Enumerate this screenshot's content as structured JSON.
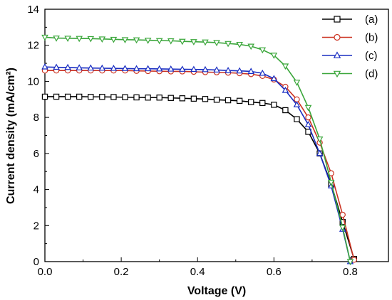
{
  "chart_data": {
    "type": "line",
    "xlabel": "Voltage (V)",
    "ylabel": "Current density (mA/cm²)",
    "xlim": [
      0.0,
      0.9
    ],
    "ylim": [
      0,
      14
    ],
    "xticks": [
      "0.0",
      "0.2",
      "0.4",
      "0.6",
      "0.8"
    ],
    "yticks": [
      "0",
      "2",
      "4",
      "6",
      "8",
      "10",
      "12",
      "14"
    ],
    "grid": false,
    "legend_position": "top-right",
    "series": [
      {
        "name": "(a)",
        "color": "#000000",
        "marker": "square",
        "x": [
          0.0,
          0.03,
          0.06,
          0.09,
          0.12,
          0.15,
          0.18,
          0.21,
          0.24,
          0.27,
          0.3,
          0.33,
          0.36,
          0.39,
          0.42,
          0.45,
          0.48,
          0.51,
          0.54,
          0.57,
          0.6,
          0.63,
          0.66,
          0.69,
          0.72,
          0.75,
          0.78,
          0.81
        ],
        "y": [
          9.15,
          9.15,
          9.15,
          9.15,
          9.14,
          9.14,
          9.13,
          9.12,
          9.11,
          9.1,
          9.1,
          9.08,
          9.06,
          9.04,
          9.02,
          8.98,
          8.95,
          8.92,
          8.85,
          8.8,
          8.7,
          8.4,
          7.9,
          7.2,
          6.0,
          4.3,
          2.2,
          0.15
        ]
      },
      {
        "name": "(b)",
        "color": "#cc3322",
        "marker": "circle",
        "x": [
          0.0,
          0.03,
          0.06,
          0.09,
          0.12,
          0.15,
          0.18,
          0.21,
          0.24,
          0.27,
          0.3,
          0.33,
          0.36,
          0.39,
          0.42,
          0.45,
          0.48,
          0.51,
          0.54,
          0.57,
          0.6,
          0.63,
          0.66,
          0.69,
          0.72,
          0.75,
          0.78,
          0.81
        ],
        "y": [
          10.6,
          10.6,
          10.6,
          10.6,
          10.6,
          10.6,
          10.6,
          10.6,
          10.58,
          10.57,
          10.56,
          10.55,
          10.55,
          10.53,
          10.51,
          10.5,
          10.48,
          10.45,
          10.4,
          10.3,
          10.1,
          9.7,
          9.0,
          8.0,
          6.6,
          4.9,
          2.6,
          0.1
        ]
      },
      {
        "name": "(c)",
        "color": "#1a2ec2",
        "marker": "triangle-up",
        "x": [
          0.0,
          0.03,
          0.06,
          0.09,
          0.12,
          0.15,
          0.18,
          0.21,
          0.24,
          0.27,
          0.3,
          0.33,
          0.36,
          0.39,
          0.42,
          0.45,
          0.48,
          0.51,
          0.54,
          0.57,
          0.6,
          0.63,
          0.66,
          0.69,
          0.72,
          0.75,
          0.78,
          0.8
        ],
        "y": [
          10.8,
          10.78,
          10.77,
          10.75,
          10.74,
          10.73,
          10.72,
          10.71,
          10.7,
          10.7,
          10.69,
          10.68,
          10.67,
          10.66,
          10.65,
          10.63,
          10.6,
          10.58,
          10.55,
          10.45,
          10.15,
          9.5,
          8.7,
          7.6,
          6.0,
          4.2,
          1.8,
          0.0
        ]
      },
      {
        "name": "(d)",
        "color": "#3aa63a",
        "marker": "triangle-down",
        "x": [
          0.0,
          0.03,
          0.06,
          0.09,
          0.12,
          0.15,
          0.18,
          0.21,
          0.24,
          0.27,
          0.3,
          0.33,
          0.36,
          0.39,
          0.42,
          0.45,
          0.48,
          0.51,
          0.54,
          0.57,
          0.6,
          0.63,
          0.66,
          0.69,
          0.72,
          0.75,
          0.78,
          0.8
        ],
        "y": [
          12.45,
          12.4,
          12.39,
          12.38,
          12.37,
          12.35,
          12.33,
          12.31,
          12.3,
          12.28,
          12.26,
          12.25,
          12.22,
          12.2,
          12.18,
          12.15,
          12.1,
          12.05,
          11.95,
          11.75,
          11.45,
          10.85,
          9.95,
          8.55,
          6.8,
          4.4,
          1.9,
          0.0
        ]
      }
    ]
  }
}
